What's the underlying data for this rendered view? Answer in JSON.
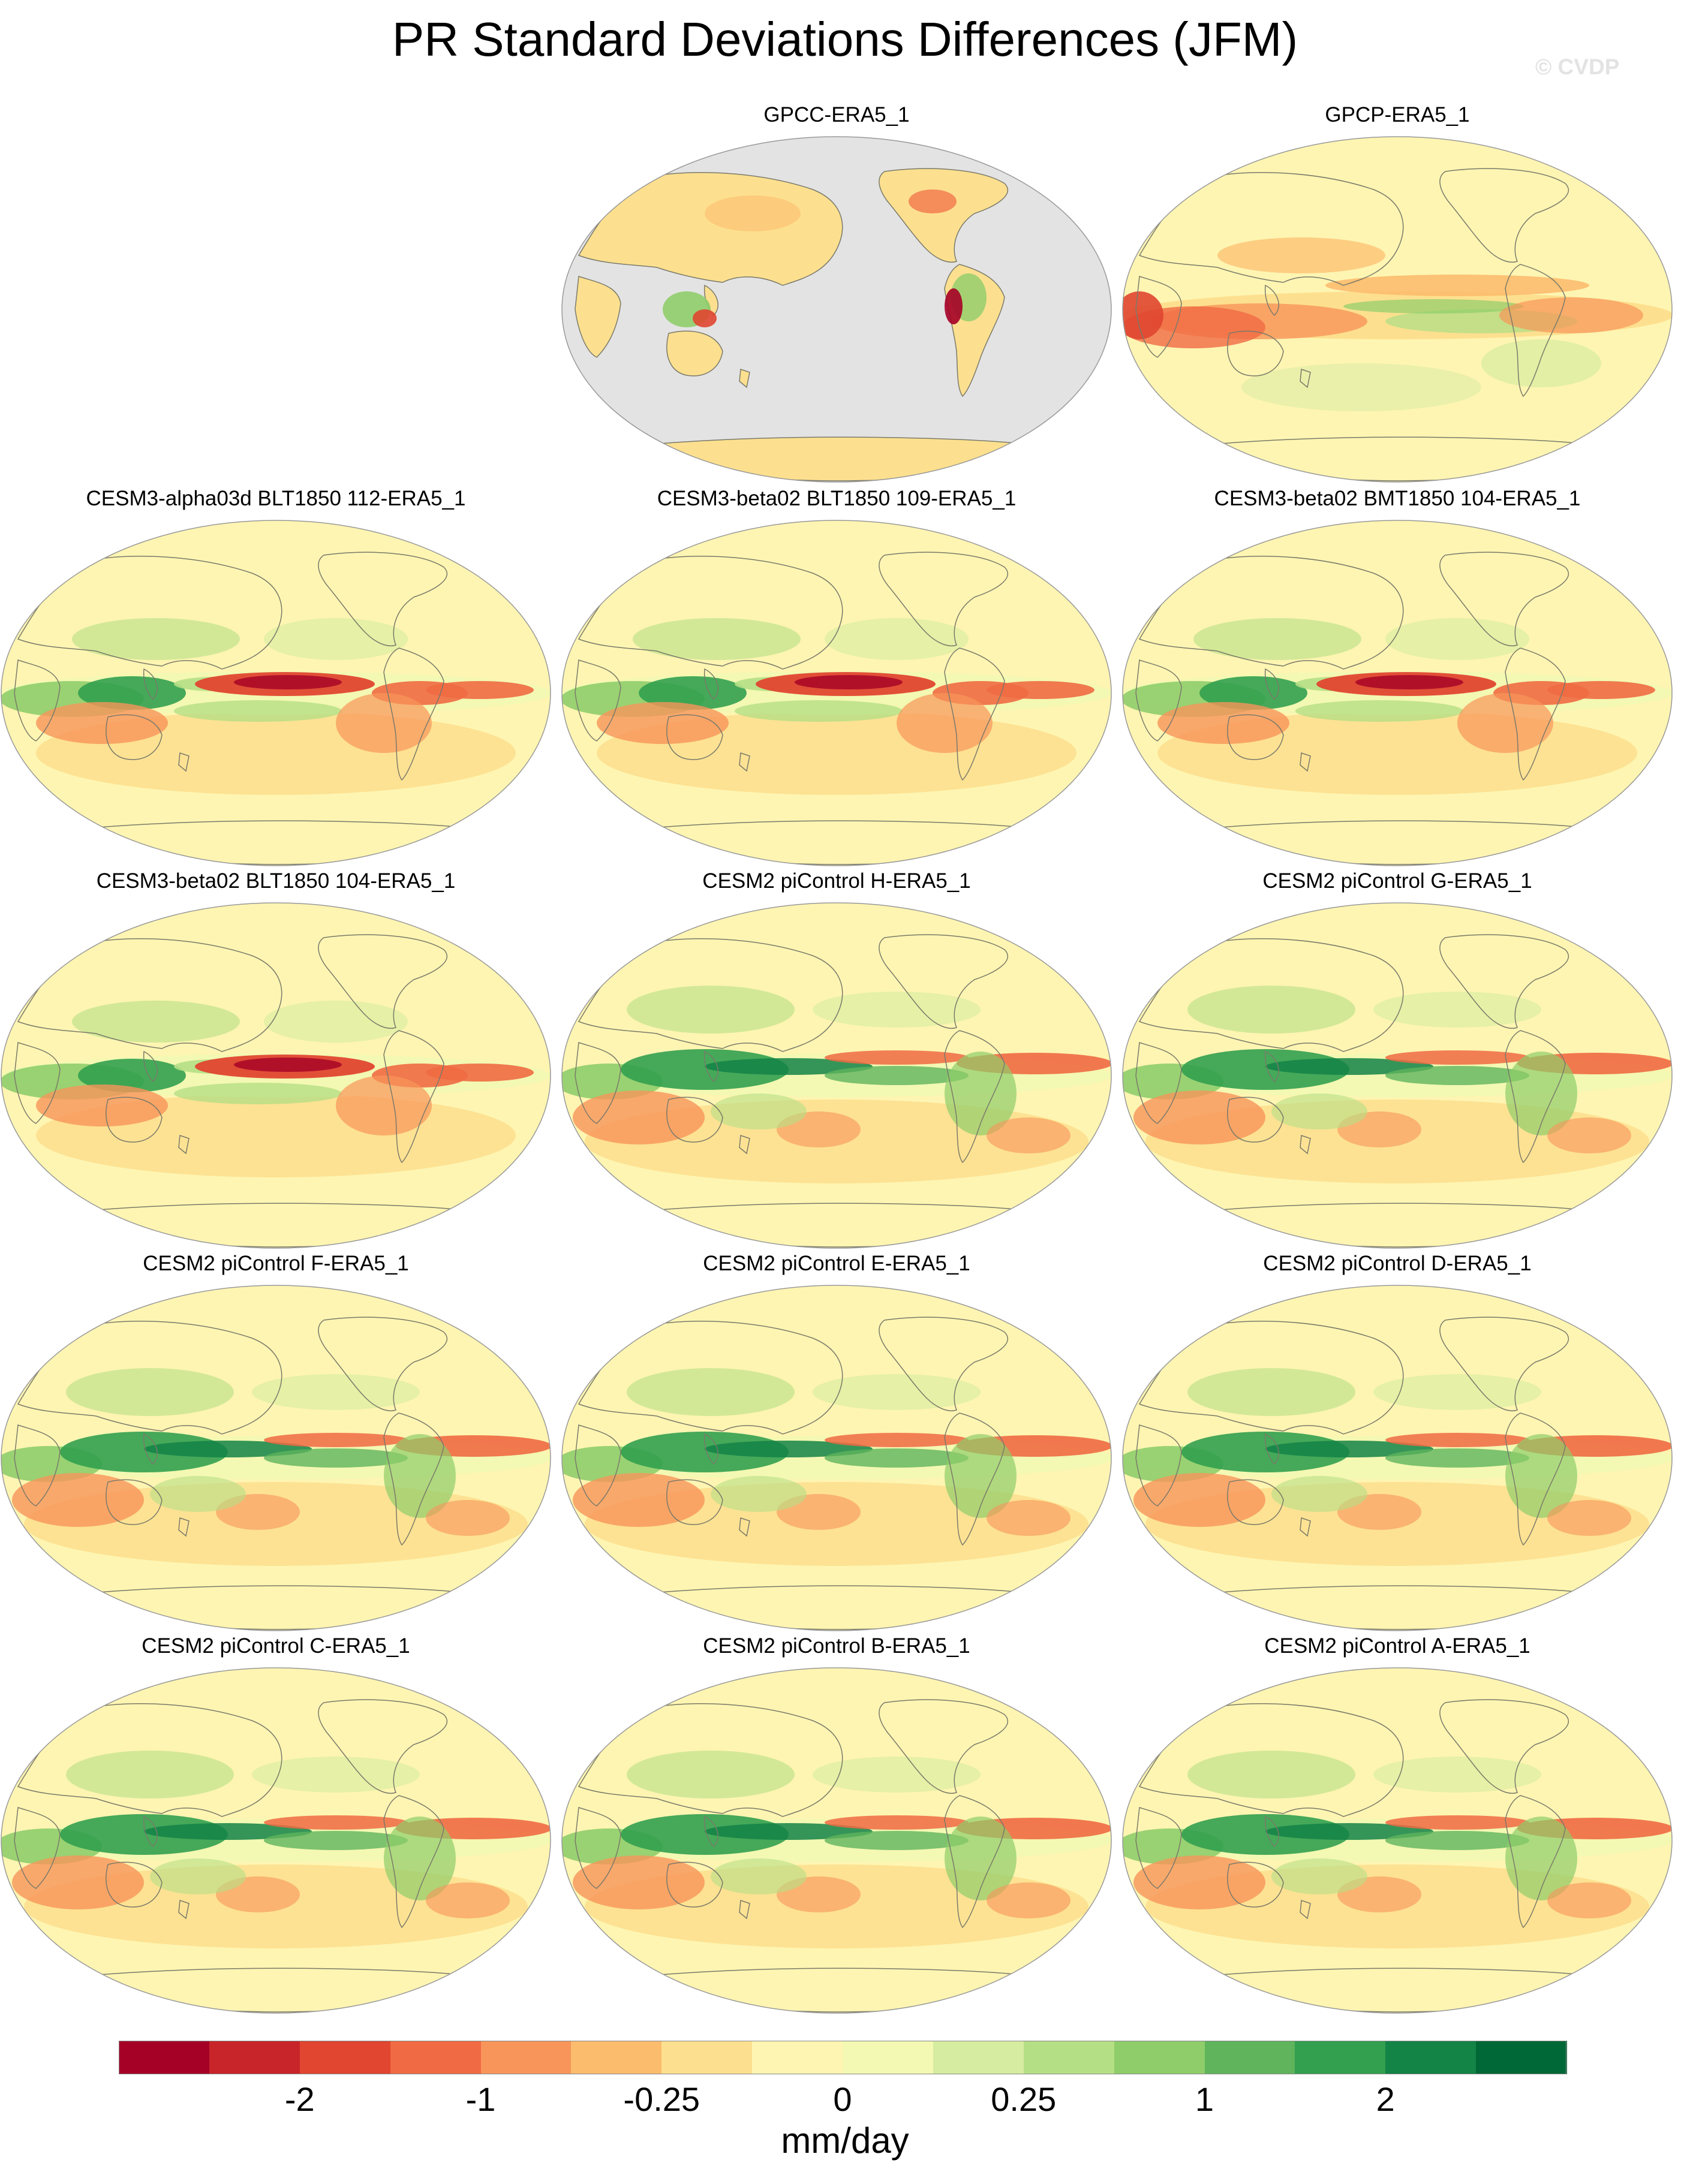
{
  "title": "PR Standard Deviations Differences (JFM)",
  "watermark": "© CVDP",
  "units": "mm/day",
  "colors": {
    "ocean_missing": "#e3e3e3",
    "coastline": "#7a7a6a",
    "colorbar": [
      "#a50026",
      "#c8252a",
      "#e04630",
      "#f06a43",
      "#f8955a",
      "#fcbc6e",
      "#fde08f",
      "#fef5b2",
      "#f3f8b2",
      "#d6eca0",
      "#b5df85",
      "#8fcd6a",
      "#5fb45c",
      "#32a04f",
      "#138346",
      "#006837"
    ]
  },
  "colorbar_labels": [
    "-2",
    "-1",
    "-0.25",
    "0",
    "0.25",
    "1",
    "2"
  ],
  "panels": [
    {
      "title": "GPCC-ERA5_1",
      "variant": "land"
    },
    {
      "title": "GPCP-ERA5_1",
      "variant": "obs"
    },
    {
      "title": "CESM3-alpha03d BLT1850 112-ERA5_1",
      "variant": "cesm3"
    },
    {
      "title": "CESM3-beta02 BLT1850 109-ERA5_1",
      "variant": "cesm3"
    },
    {
      "title": "CESM3-beta02 BMT1850 104-ERA5_1",
      "variant": "cesm3"
    },
    {
      "title": "CESM3-beta02 BLT1850 104-ERA5_1",
      "variant": "cesm3"
    },
    {
      "title": "CESM2 piControl H-ERA5_1",
      "variant": "cesm2"
    },
    {
      "title": "CESM2 piControl G-ERA5_1",
      "variant": "cesm2"
    },
    {
      "title": "CESM2 piControl F-ERA5_1",
      "variant": "cesm2"
    },
    {
      "title": "CESM2 piControl E-ERA5_1",
      "variant": "cesm2"
    },
    {
      "title": "CESM2 piControl D-ERA5_1",
      "variant": "cesm2"
    },
    {
      "title": "CESM2 piControl C-ERA5_1",
      "variant": "cesm2"
    },
    {
      "title": "CESM2 piControl B-ERA5_1",
      "variant": "cesm2"
    },
    {
      "title": "CESM2 piControl A-ERA5_1",
      "variant": "cesm2"
    }
  ]
}
